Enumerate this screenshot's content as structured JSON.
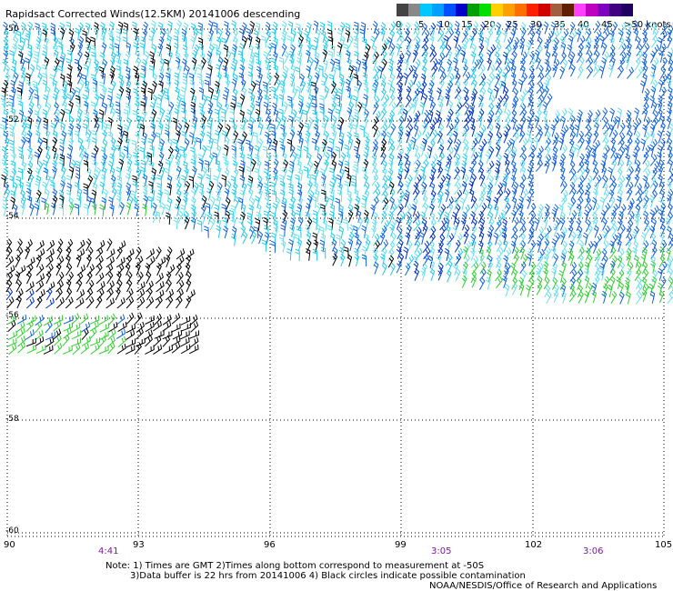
{
  "title": "Rapidsact Corrected Winds(12.5KM) 20141006 descending",
  "colorbar": {
    "labels": [
      "0",
      "5",
      "10",
      "15",
      "20",
      "25",
      "30",
      "35",
      "40",
      "45",
      ">50 knots"
    ],
    "colors": [
      "#444444",
      "#888888",
      "#00c8ff",
      "#00a0ff",
      "#0050ff",
      "#0000c8",
      "#00a000",
      "#00e000",
      "#ffd000",
      "#ffa000",
      "#ff7000",
      "#ff2000",
      "#d00000",
      "#a06040",
      "#602000",
      "#ff40ff",
      "#c000c0",
      "#8000c0",
      "#400080",
      "#200060"
    ]
  },
  "map": {
    "x_labels": [
      "90",
      "93",
      "96",
      "99",
      "102",
      "105"
    ],
    "y_labels": [
      "-50",
      "-52",
      "-54",
      "-56",
      "-58",
      "-60"
    ],
    "time_labels": [
      "4:41",
      "3:05",
      "3:06"
    ],
    "wind_colors": {
      "black": "#000000",
      "cyan": "#22ccee",
      "light_cyan": "#66e0f0",
      "blue": "#1060e0",
      "dark_blue": "#0030c0",
      "green": "#30d030"
    }
  },
  "notes": {
    "line1": "Note: 1) Times are GMT 2)Times along bottom correspond to measurement at -50S",
    "line2": "3)Data buffer is 22 hrs from 20141006 4) Black circles indicate possible contamination",
    "credit": "NOAA/NESDIS/Office of Research and Applications"
  }
}
